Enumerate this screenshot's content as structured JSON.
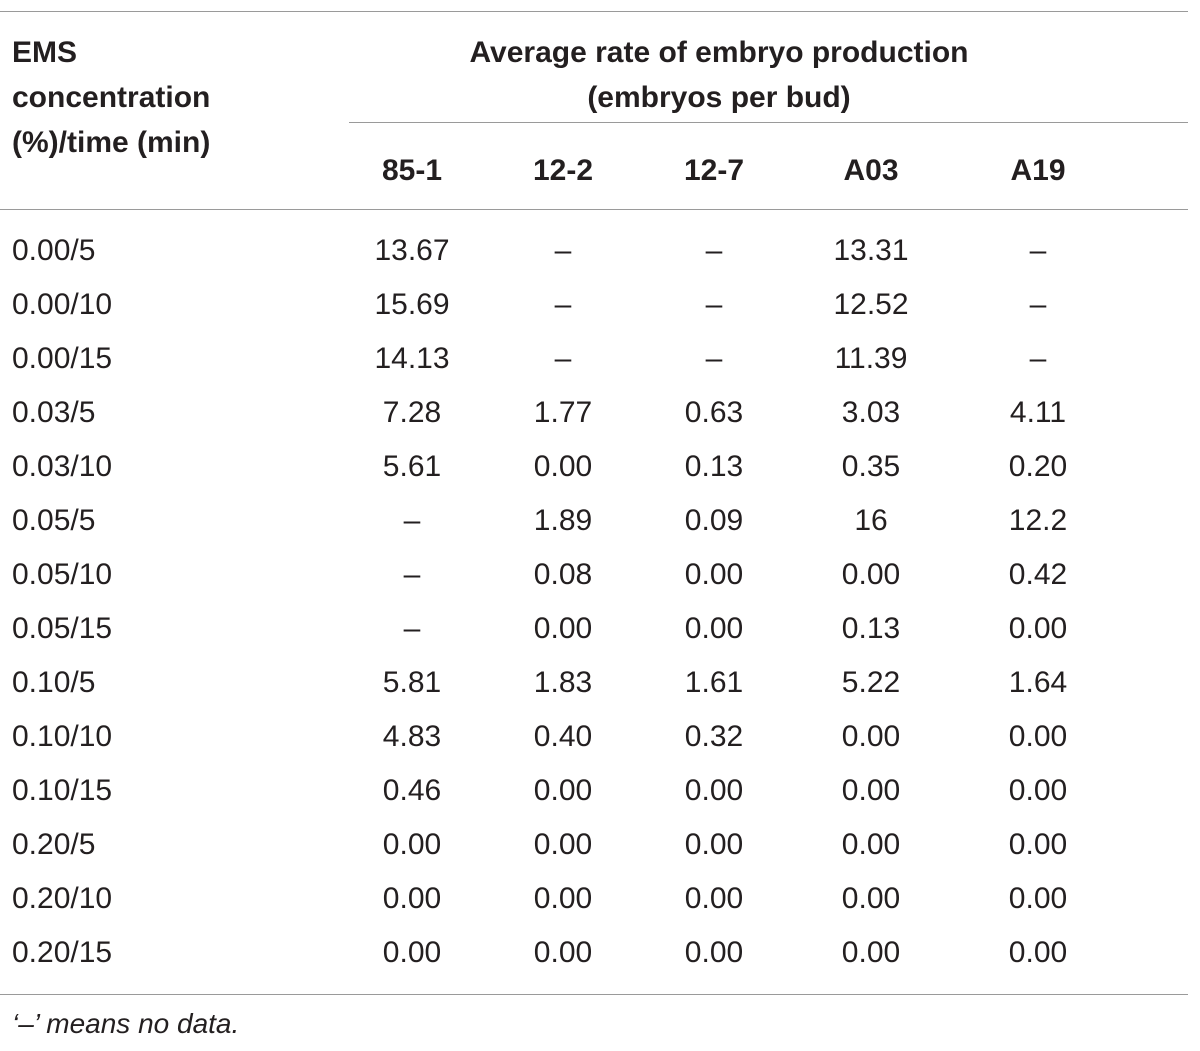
{
  "header": {
    "row_label": [
      "EMS",
      "concentration",
      "(%)/time (min)"
    ],
    "group_title": [
      "Average rate of embryo production",
      "(embryos per bud)"
    ],
    "columns": [
      "85-1",
      "12-2",
      "12-7",
      "A03",
      "A19"
    ]
  },
  "rows": [
    {
      "label": "0.00/5",
      "values": [
        "13.67",
        "–",
        "–",
        "13.31",
        "–"
      ]
    },
    {
      "label": "0.00/10",
      "values": [
        "15.69",
        "–",
        "–",
        "12.52",
        "–"
      ]
    },
    {
      "label": "0.00/15",
      "values": [
        "14.13",
        "–",
        "–",
        "11.39",
        "–"
      ]
    },
    {
      "label": "0.03/5",
      "values": [
        "7.28",
        "1.77",
        "0.63",
        "3.03",
        "4.11"
      ]
    },
    {
      "label": "0.03/10",
      "values": [
        "5.61",
        "0.00",
        "0.13",
        "0.35",
        "0.20"
      ]
    },
    {
      "label": "0.05/5",
      "values": [
        "–",
        "1.89",
        "0.09",
        "16",
        "12.2"
      ]
    },
    {
      "label": "0.05/10",
      "values": [
        "–",
        "0.08",
        "0.00",
        "0.00",
        "0.42"
      ]
    },
    {
      "label": "0.05/15",
      "values": [
        "–",
        "0.00",
        "0.00",
        "0.13",
        "0.00"
      ]
    },
    {
      "label": "0.10/5",
      "values": [
        "5.81",
        "1.83",
        "1.61",
        "5.22",
        "1.64"
      ]
    },
    {
      "label": "0.10/10",
      "values": [
        "4.83",
        "0.40",
        "0.32",
        "0.00",
        "0.00"
      ]
    },
    {
      "label": "0.10/15",
      "values": [
        "0.46",
        "0.00",
        "0.00",
        "0.00",
        "0.00"
      ]
    },
    {
      "label": "0.20/5",
      "values": [
        "0.00",
        "0.00",
        "0.00",
        "0.00",
        "0.00"
      ]
    },
    {
      "label": "0.20/10",
      "values": [
        "0.00",
        "0.00",
        "0.00",
        "0.00",
        "0.00"
      ]
    },
    {
      "label": "0.20/15",
      "values": [
        "0.00",
        "0.00",
        "0.00",
        "0.00",
        "0.00"
      ]
    }
  ],
  "footnote": "‘–’ means no data."
}
